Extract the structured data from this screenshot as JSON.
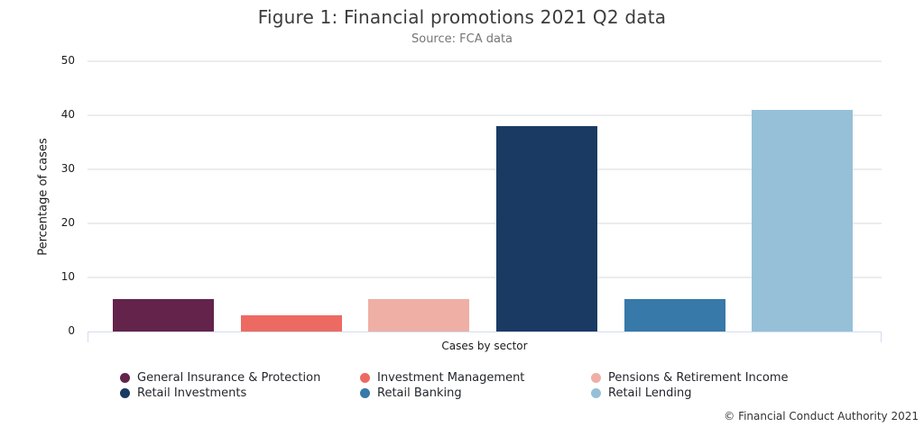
{
  "page": {
    "copyright": "© Financial Conduct Authority 2021"
  },
  "chart_data": {
    "type": "bar",
    "title": "Figure 1: Financial promotions 2021 Q2 data",
    "subtitle": "Source: FCA data",
    "xlabel": "Cases by sector",
    "ylabel": "Percentage of cases",
    "ylim": [
      0,
      50
    ],
    "yticks": [
      0,
      10,
      20,
      30,
      40,
      50
    ],
    "grid": "horizontal-only",
    "legend_position": "bottom",
    "categories": [
      "General Insurance & Protection",
      "Investment Management",
      "Pensions & Retirement Income",
      "Retail Investments",
      "Retail Banking",
      "Retail Lending"
    ],
    "values": [
      6,
      3,
      6,
      38,
      6,
      41
    ],
    "colors": [
      "#63234B",
      "#ED6A62",
      "#EFAFA5",
      "#1A3A64",
      "#3779A8",
      "#95C0D8"
    ]
  },
  "theme_colors": {
    "axis_baseline": "#D4DCEF",
    "gridline": "#ECECEC",
    "title_text": "#3C3C3B",
    "subtitle_text": "#757575",
    "legend_text": "#24262B"
  }
}
